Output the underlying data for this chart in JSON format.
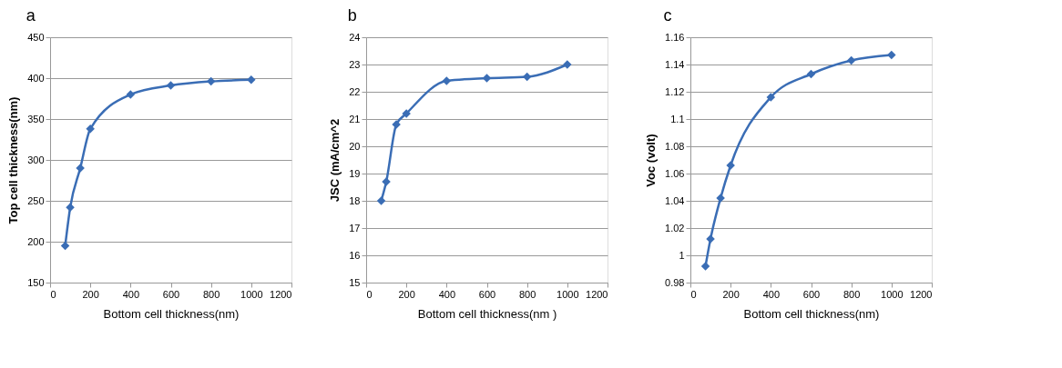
{
  "chart_data": [
    {
      "type": "line",
      "title": "a",
      "xlabel": "Bottom cell thickness(nm)",
      "ylabel": "Top cell thickness(nm)",
      "x": [
        75,
        100,
        150,
        200,
        400,
        600,
        800,
        1000
      ],
      "series": [
        {
          "color": "#3a6db5",
          "values": [
            195,
            242,
            290,
            338,
            380,
            391,
            396,
            398
          ]
        }
      ],
      "xlim": [
        0,
        1200
      ],
      "xticks": [
        0,
        200,
        400,
        600,
        800,
        1000,
        1200
      ],
      "ylim": [
        150,
        450
      ],
      "yticks": [
        150,
        200,
        250,
        300,
        350,
        400,
        450
      ],
      "grid": "y",
      "marker": "diamond",
      "line_style": "solid"
    },
    {
      "type": "line",
      "title": "b",
      "xlabel": "Bottom cell thickness(nm )",
      "ylabel": "JSC (mA/cm^2",
      "x": [
        75,
        100,
        150,
        200,
        400,
        600,
        800,
        1000
      ],
      "series": [
        {
          "color": "#3a6db5",
          "values": [
            18.0,
            18.7,
            20.8,
            21.2,
            22.4,
            22.5,
            22.55,
            23.0
          ]
        }
      ],
      "xlim": [
        0,
        1200
      ],
      "xticks": [
        0,
        200,
        400,
        600,
        800,
        1000,
        1200
      ],
      "ylim": [
        15,
        24
      ],
      "yticks": [
        15,
        16,
        17,
        18,
        19,
        20,
        21,
        22,
        23,
        24
      ],
      "grid": "y",
      "marker": "diamond",
      "line_style": "solid"
    },
    {
      "type": "line",
      "title": "c",
      "xlabel": "Bottom cell thickness(nm)",
      "ylabel": "Voc (volt)",
      "x": [
        75,
        100,
        150,
        200,
        400,
        600,
        800,
        1000
      ],
      "series": [
        {
          "color": "#3a6db5",
          "values": [
            0.992,
            1.012,
            1.042,
            1.066,
            1.116,
            1.133,
            1.143,
            1.147
          ]
        }
      ],
      "xlim": [
        0,
        1200
      ],
      "xticks": [
        0,
        200,
        400,
        600,
        800,
        1000,
        1200
      ],
      "ylim": [
        0.98,
        1.16
      ],
      "yticks": [
        0.98,
        1,
        1.02,
        1.04,
        1.06,
        1.08,
        1.1,
        1.12,
        1.14,
        1.16
      ],
      "grid": "y",
      "marker": "diamond",
      "line_style": "solid"
    }
  ]
}
